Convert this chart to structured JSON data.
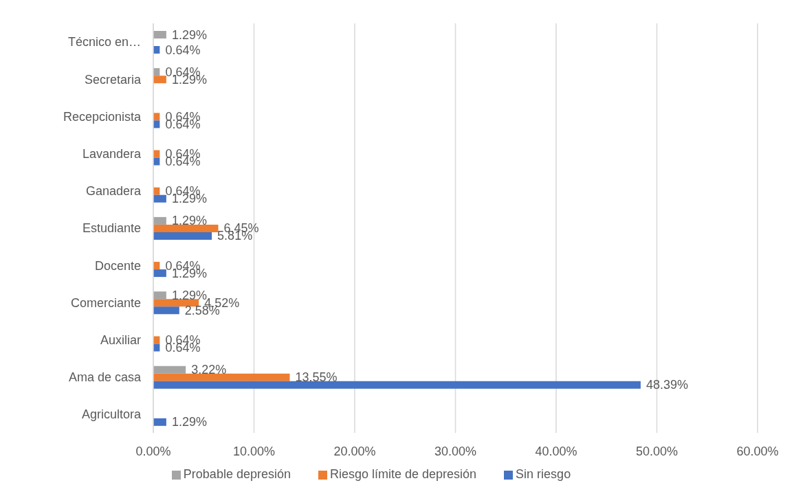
{
  "chart_data": {
    "type": "bar",
    "orientation": "horizontal",
    "categories": [
      "Técnico en…",
      "Secretaria",
      "Recepcionista",
      "Lavandera",
      "Ganadera",
      "Estudiante",
      "Docente",
      "Comerciante",
      "Auxiliar",
      "Ama de casa",
      "Agricultora"
    ],
    "series": [
      {
        "name": "Probable depresión",
        "color": "#a5a5a5",
        "values": [
          1.29,
          0.64,
          null,
          null,
          null,
          1.29,
          null,
          1.29,
          null,
          3.22,
          null
        ],
        "value_labels": [
          "1.29%",
          "0.64%",
          null,
          null,
          null,
          "1.29%",
          null,
          "1.29%",
          null,
          "3.22%",
          null
        ]
      },
      {
        "name": "Riesgo límite de depresión",
        "color": "#ed7d31",
        "values": [
          null,
          1.29,
          0.64,
          0.64,
          0.64,
          6.45,
          0.64,
          4.52,
          0.64,
          13.55,
          null
        ],
        "value_labels": [
          null,
          "1.29%",
          "0.64%",
          "0.64%",
          "0.64%",
          "6.45%",
          "0.64%",
          "4.52%",
          "0.64%",
          "13.55%",
          null
        ]
      },
      {
        "name": "Sin riesgo",
        "color": "#4472c4",
        "values": [
          0.64,
          null,
          0.64,
          0.64,
          1.29,
          5.81,
          1.29,
          2.58,
          0.64,
          48.39,
          1.29
        ],
        "value_labels": [
          "0.64%",
          null,
          "0.64%",
          "0.64%",
          "1.29%",
          "5.81%",
          "1.29%",
          "2.58%",
          "0.64%",
          "48.39%",
          "1.29%"
        ]
      }
    ],
    "xlim": [
      0,
      60
    ],
    "xticks": [
      {
        "value": 0,
        "label": "0.00%"
      },
      {
        "value": 10,
        "label": "10.00%"
      },
      {
        "value": 20,
        "label": "20.00%"
      },
      {
        "value": 30,
        "label": "30.00%"
      },
      {
        "value": 40,
        "label": "40.00%"
      },
      {
        "value": 50,
        "label": "50.00%"
      },
      {
        "value": 60,
        "label": "60.00%"
      }
    ],
    "grid": "x",
    "legend": "bottom"
  }
}
